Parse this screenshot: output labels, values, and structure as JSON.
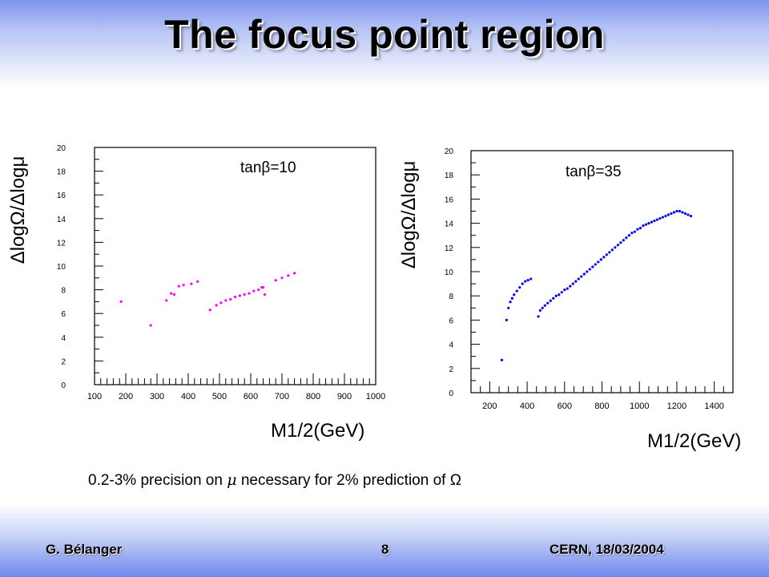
{
  "slide": {
    "title": "The focus point region",
    "caption_prefix": "0.2-3% precision on ",
    "caption_mu": "μ",
    "caption_suffix": " necessary for 2% prediction of Ω",
    "footer_left": "G. Bélanger",
    "footer_center": "8",
    "footer_right": "CERN, 18/03/2004"
  },
  "colors": {
    "left_series": "#ff00ff",
    "right_series": "#0000ff"
  },
  "chart_data": [
    {
      "type": "scatter",
      "annotation": "tanβ=10",
      "ylabel": "ΔlogΩ/Δlogμ",
      "xlabel": "M1/2(GeV)",
      "xlim": [
        100,
        1000
      ],
      "ylim": [
        0,
        20
      ],
      "x_ticks": [
        100,
        200,
        300,
        400,
        500,
        600,
        700,
        800,
        900,
        1000
      ],
      "y_ticks": [
        0,
        2,
        4,
        6,
        8,
        10,
        12,
        14,
        16,
        18,
        20
      ],
      "series": [
        {
          "color": "#ff00ff",
          "points": [
            [
              185,
              7.0
            ],
            [
              280,
              5.0
            ],
            [
              330,
              7.1
            ],
            [
              345,
              7.7
            ],
            [
              355,
              7.6
            ],
            [
              370,
              8.3
            ],
            [
              385,
              8.4
            ],
            [
              410,
              8.5
            ],
            [
              430,
              8.7
            ],
            [
              470,
              6.3
            ],
            [
              490,
              6.7
            ],
            [
              505,
              6.9
            ],
            [
              520,
              7.1
            ],
            [
              535,
              7.2
            ],
            [
              550,
              7.4
            ],
            [
              565,
              7.5
            ],
            [
              580,
              7.6
            ],
            [
              595,
              7.7
            ],
            [
              610,
              7.9
            ],
            [
              625,
              8.0
            ],
            [
              635,
              8.2
            ],
            [
              640,
              8.2
            ],
            [
              645,
              7.6
            ],
            [
              680,
              8.8
            ],
            [
              700,
              9.0
            ],
            [
              720,
              9.2
            ],
            [
              740,
              9.4
            ]
          ]
        }
      ]
    },
    {
      "type": "scatter",
      "annotation": "tanβ=35",
      "ylabel": "ΔlogΩ/Δlogμ",
      "xlabel": "M1/2(GeV)",
      "xlim": [
        100,
        1500
      ],
      "ylim": [
        0,
        20
      ],
      "x_ticks": [
        200,
        400,
        600,
        800,
        1000,
        1200,
        1400
      ],
      "y_ticks": [
        0,
        2,
        4,
        6,
        8,
        10,
        12,
        14,
        16,
        18,
        20
      ],
      "series": [
        {
          "color": "#0000ff",
          "points": [
            [
              265,
              2.7
            ],
            [
              290,
              6.0
            ],
            [
              300,
              7.0
            ],
            [
              310,
              7.5
            ],
            [
              320,
              7.8
            ],
            [
              330,
              8.1
            ],
            [
              345,
              8.4
            ],
            [
              360,
              8.7
            ],
            [
              375,
              9.0
            ],
            [
              390,
              9.2
            ],
            [
              405,
              9.3
            ],
            [
              420,
              9.4
            ],
            [
              460,
              6.3
            ],
            [
              470,
              6.8
            ],
            [
              482,
              7.0
            ],
            [
              495,
              7.2
            ],
            [
              510,
              7.4
            ],
            [
              525,
              7.6
            ],
            [
              540,
              7.8
            ],
            [
              555,
              8.0
            ],
            [
              570,
              8.1
            ],
            [
              585,
              8.3
            ],
            [
              600,
              8.5
            ],
            [
              615,
              8.6
            ],
            [
              630,
              8.8
            ],
            [
              645,
              9.0
            ],
            [
              660,
              9.2
            ],
            [
              675,
              9.4
            ],
            [
              690,
              9.6
            ],
            [
              705,
              9.8
            ],
            [
              720,
              10.0
            ],
            [
              735,
              10.2
            ],
            [
              750,
              10.4
            ],
            [
              765,
              10.6
            ],
            [
              780,
              10.8
            ],
            [
              795,
              11.0
            ],
            [
              810,
              11.2
            ],
            [
              825,
              11.4
            ],
            [
              840,
              11.6
            ],
            [
              855,
              11.8
            ],
            [
              870,
              12.0
            ],
            [
              885,
              12.2
            ],
            [
              900,
              12.4
            ],
            [
              915,
              12.6
            ],
            [
              930,
              12.8
            ],
            [
              945,
              13.0
            ],
            [
              960,
              13.2
            ],
            [
              975,
              13.3
            ],
            [
              990,
              13.5
            ],
            [
              1005,
              13.6
            ],
            [
              1020,
              13.8
            ],
            [
              1035,
              13.9
            ],
            [
              1050,
              14.0
            ],
            [
              1065,
              14.1
            ],
            [
              1080,
              14.2
            ],
            [
              1095,
              14.3
            ],
            [
              1110,
              14.4
            ],
            [
              1125,
              14.5
            ],
            [
              1140,
              14.6
            ],
            [
              1155,
              14.7
            ],
            [
              1170,
              14.8
            ],
            [
              1185,
              14.9
            ],
            [
              1200,
              15.0
            ],
            [
              1215,
              15.0
            ],
            [
              1230,
              14.9
            ],
            [
              1245,
              14.8
            ],
            [
              1260,
              14.7
            ],
            [
              1275,
              14.6
            ]
          ]
        }
      ]
    }
  ]
}
